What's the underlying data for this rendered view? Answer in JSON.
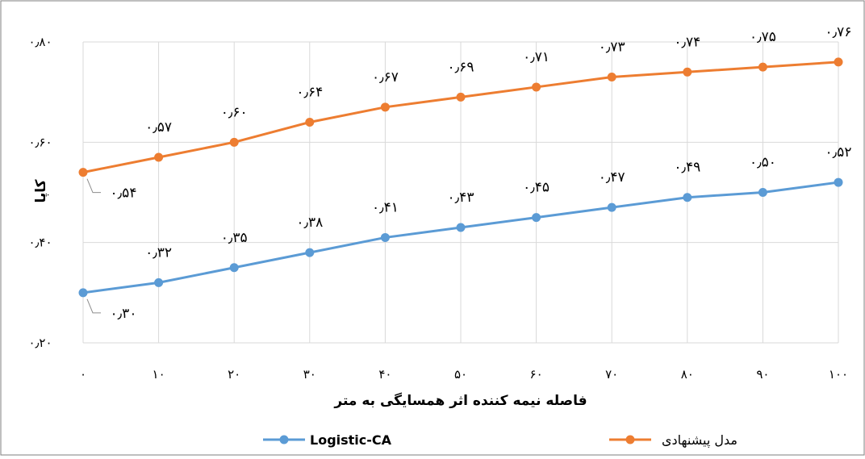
{
  "chart_data": {
    "type": "line",
    "xlabel": "فاصله نیمه کننده اثر همسایگی به متر",
    "ylabel": "کاپا",
    "x": [
      0,
      10,
      20,
      30,
      40,
      50,
      60,
      70,
      80,
      90,
      100
    ],
    "x_tick_labels": [
      "۰",
      "۱۰",
      "۲۰",
      "۳۰",
      "۴۰",
      "۵۰",
      "۶۰",
      "۷۰",
      "۸۰",
      "۹۰",
      "۱۰۰"
    ],
    "ylim": [
      0.2,
      0.8
    ],
    "y_ticks": [
      0.2,
      0.4,
      0.6,
      0.8
    ],
    "y_tick_labels": [
      "۰٫۲۰",
      "۰٫۴۰",
      "۰٫۶۰",
      "۰٫۸۰"
    ],
    "grid": true,
    "legend_position": "bottom",
    "series": [
      {
        "name": "Logistic-CA",
        "color": "#5b9bd5",
        "values": [
          0.3,
          0.32,
          0.35,
          0.38,
          0.41,
          0.43,
          0.45,
          0.47,
          0.49,
          0.5,
          0.52
        ],
        "labels": [
          "۰٫۳۰",
          "۰٫۳۲",
          "۰٫۳۵",
          "۰٫۳۸",
          "۰٫۴۱",
          "۰٫۴۳",
          "۰٫۴۵",
          "۰٫۴۷",
          "۰٫۴۹",
          "۰٫۵۰",
          "۰٫۵۲"
        ]
      },
      {
        "name": "مدل پیشنهادی",
        "color": "#ed7d31",
        "values": [
          0.54,
          0.57,
          0.6,
          0.64,
          0.67,
          0.69,
          0.71,
          0.73,
          0.74,
          0.75,
          0.76
        ],
        "labels": [
          "۰٫۵۴",
          "۰٫۵۷",
          "۰٫۶۰",
          "۰٫۶۴",
          "۰٫۶۷",
          "۰٫۶۹",
          "۰٫۷۱",
          "۰٫۷۳",
          "۰٫۷۴",
          "۰٫۷۵",
          "۰٫۷۶"
        ]
      }
    ]
  }
}
